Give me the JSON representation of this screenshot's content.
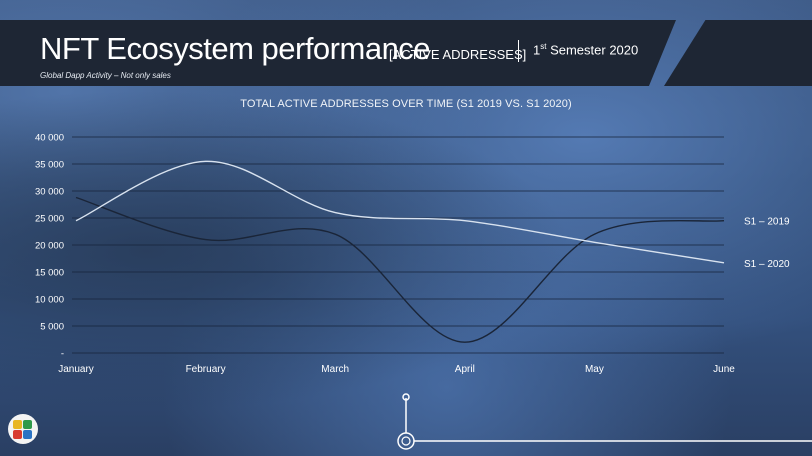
{
  "header": {
    "title": "NFT Ecosystem performance",
    "tag": "[ACTIVE ADDRESSES]",
    "semester_prefix": "1",
    "semester_sup": "st",
    "semester_suffix": " Semester 2020",
    "subtitle": "Global Dapp Activity – Not only sales"
  },
  "chart_data": {
    "type": "line",
    "title": "TOTAL ACTIVE ADDRESSES OVER TIME (S1 2019 VS. S1 2020)",
    "categories": [
      "January",
      "February",
      "March",
      "April",
      "May",
      "June"
    ],
    "y_ticks": [
      "-",
      "5 000",
      "10 000",
      "15 000",
      "20 000",
      "25 000",
      "30 000",
      "35 000",
      "40 000"
    ],
    "ylim": [
      0,
      40000
    ],
    "grid": true,
    "legend": "end-of-line labels",
    "series": [
      {
        "name": "S1 – 2019",
        "values": [
          28800,
          21000,
          22000,
          2000,
          22000,
          24500
        ],
        "color": "#1a2538"
      },
      {
        "name": "S1 – 2020",
        "values": [
          24500,
          35500,
          26000,
          24500,
          20500,
          16700
        ],
        "color": "#d8e2ef"
      }
    ]
  },
  "colors": {
    "banner": "#1e2634",
    "grid": "#16233a",
    "text": "#ffffff"
  },
  "logo_icon": "bird-logo-icon"
}
